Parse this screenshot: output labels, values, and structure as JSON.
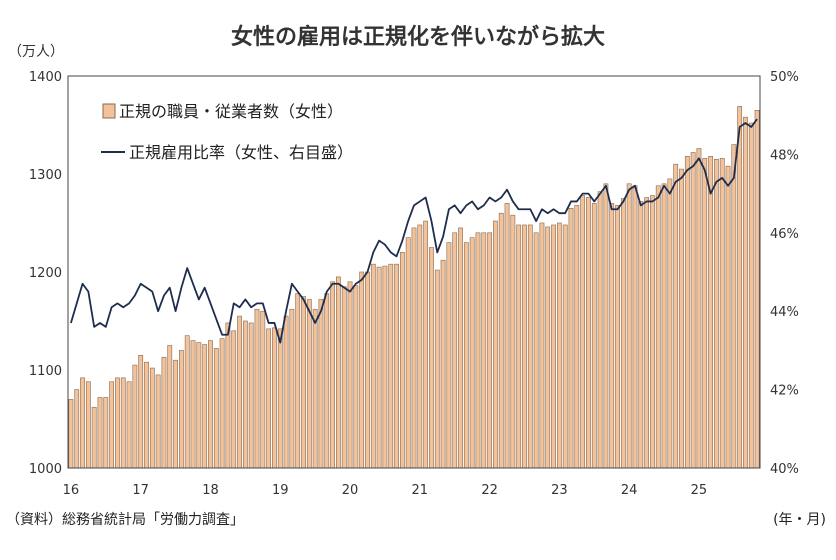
{
  "chart_data": {
    "type": "bar+line",
    "title": "女性の雇用は正規化を伴いながら拡大",
    "left_unit": "（万人）",
    "x_unit": "(年・月)",
    "source": "（資料）総務省統計局「労働力調査」",
    "x_ticks": [
      "16",
      "17",
      "18",
      "19",
      "20",
      "21",
      "22",
      "23",
      "24",
      "25"
    ],
    "y_left": {
      "min": 1000,
      "max": 1400,
      "ticks": [
        "1000",
        "1100",
        "1200",
        "1300",
        "1400"
      ]
    },
    "y_right": {
      "min": 40,
      "max": 50,
      "ticks": [
        "40%",
        "42%",
        "44%",
        "46%",
        "48%",
        "50%"
      ]
    },
    "grid": false,
    "legend_position": "top-left",
    "colors": {
      "bar_fill": "#f2c29a",
      "bar_edge": "#8a6a52",
      "line": "#1f2d4d"
    },
    "series": [
      {
        "name": "正規の職員・従業者数（女性）",
        "type": "bar",
        "values": [
          1070,
          1080,
          1092,
          1088,
          1062,
          1072,
          1072,
          1088,
          1092,
          1092,
          1088,
          1105,
          1115,
          1108,
          1102,
          1095,
          1113,
          1125,
          1110,
          1120,
          1135,
          1130,
          1128,
          1126,
          1130,
          1122,
          1132,
          1148,
          1140,
          1155,
          1150,
          1148,
          1162,
          1160,
          1142,
          1143,
          1142,
          1155,
          1162,
          1178,
          1175,
          1172,
          1162,
          1172,
          1178,
          1190,
          1195,
          1185,
          1190,
          1186,
          1200,
          1200,
          1208,
          1205,
          1206,
          1208,
          1208,
          1220,
          1235,
          1245,
          1248,
          1252,
          1225,
          1202,
          1212,
          1230,
          1240,
          1245,
          1230,
          1235,
          1240,
          1240,
          1240,
          1252,
          1260,
          1270,
          1258,
          1248,
          1248,
          1248,
          1240,
          1250,
          1246,
          1248,
          1250,
          1248,
          1265,
          1268,
          1278,
          1276,
          1270,
          1282,
          1290,
          1270,
          1268,
          1275,
          1290,
          1288,
          1272,
          1276,
          1278,
          1288,
          1290,
          1295,
          1310,
          1305,
          1318,
          1322,
          1326,
          1316,
          1318,
          1315,
          1316,
          1308,
          1330,
          1369,
          1358,
          1352,
          1365
        ]
      },
      {
        "name": "正規雇用比率（女性、右目盛）",
        "type": "line",
        "values": [
          43.7,
          44.2,
          44.7,
          44.5,
          43.6,
          43.7,
          43.6,
          44.1,
          44.2,
          44.1,
          44.2,
          44.4,
          44.7,
          44.6,
          44.5,
          44.0,
          44.4,
          44.6,
          44.0,
          44.6,
          45.1,
          44.7,
          44.3,
          44.6,
          44.2,
          43.8,
          43.4,
          43.4,
          44.2,
          44.1,
          44.3,
          44.1,
          44.2,
          44.2,
          43.7,
          43.7,
          43.2,
          44.0,
          44.7,
          44.5,
          44.3,
          44.0,
          43.7,
          44.0,
          44.5,
          44.7,
          44.7,
          44.6,
          44.5,
          44.7,
          44.8,
          45.0,
          45.5,
          45.8,
          45.7,
          45.5,
          45.4,
          45.8,
          46.3,
          46.7,
          46.8,
          46.9,
          46.3,
          45.5,
          45.9,
          46.6,
          46.7,
          46.5,
          46.7,
          46.8,
          46.6,
          46.7,
          46.9,
          46.8,
          46.9,
          47.1,
          46.8,
          46.6,
          46.6,
          46.6,
          46.3,
          46.6,
          46.5,
          46.6,
          46.5,
          46.5,
          46.8,
          46.8,
          47.0,
          47.0,
          46.8,
          47.0,
          47.2,
          46.6,
          46.6,
          46.8,
          47.1,
          47.2,
          46.7,
          46.8,
          46.8,
          46.9,
          47.2,
          47.0,
          47.3,
          47.4,
          47.6,
          47.7,
          47.9,
          47.6,
          47.0,
          47.3,
          47.4,
          47.2,
          47.4,
          48.7,
          48.8,
          48.7,
          48.9
        ]
      }
    ]
  }
}
